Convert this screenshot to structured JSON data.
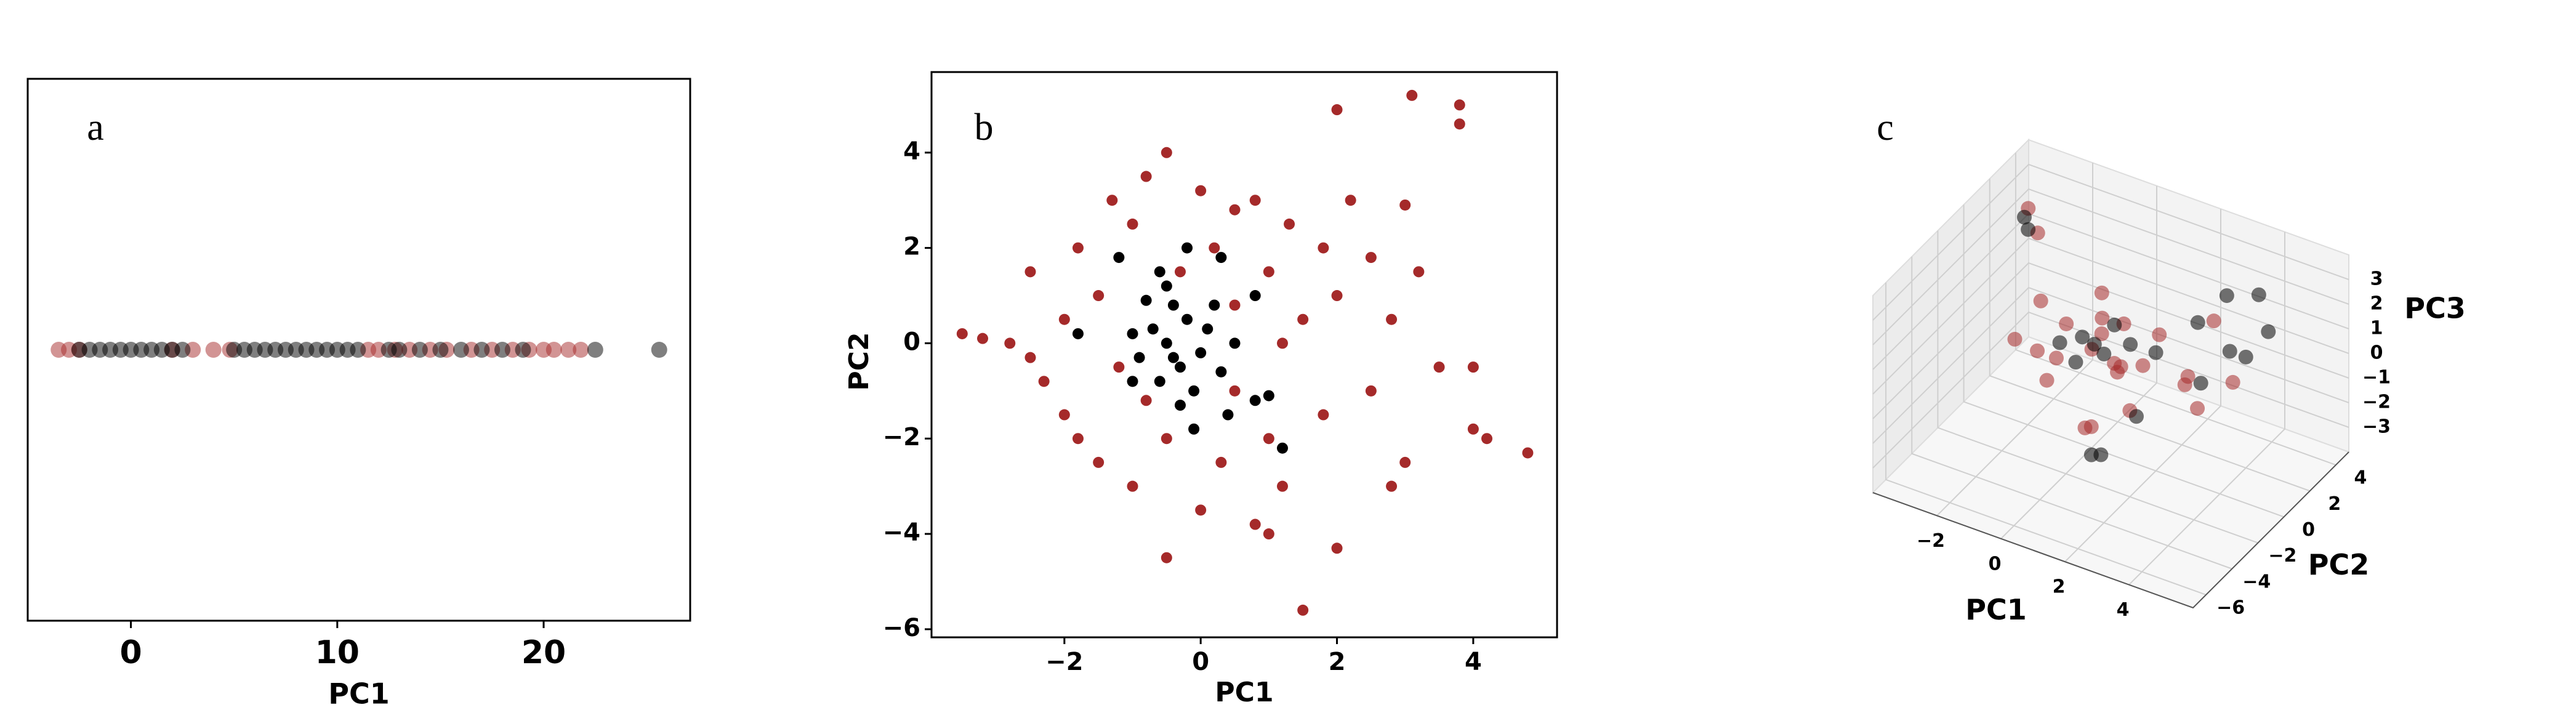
{
  "chart_data": [
    {
      "type": "strip",
      "annotation": "a",
      "xlabel": "PC1",
      "xlim": [
        -5,
        27.1
      ],
      "xticks": [
        0,
        10,
        20
      ],
      "series": [
        {
          "color": "#a52a2a",
          "values": [
            -3.5,
            -3,
            -2.5,
            2,
            3,
            4,
            4.8,
            11.5,
            12,
            12.8,
            13.5,
            14.5,
            15.3,
            16.5,
            17.5,
            18.5,
            19.3,
            20,
            20.5,
            21.2,
            21.8
          ]
        },
        {
          "color": "#000000",
          "values": [
            -2.5,
            -2,
            -1.5,
            -1,
            -0.5,
            0,
            0.5,
            1,
            1.5,
            2,
            2.5,
            5,
            5.5,
            6,
            6.5,
            7,
            7.5,
            8,
            8.5,
            9,
            9.5,
            10,
            10.5,
            11,
            12.5,
            13,
            14,
            15,
            16,
            17,
            18,
            19,
            22.5,
            25.6
          ]
        }
      ]
    },
    {
      "type": "scatter",
      "annotation": "b",
      "xlabel": "PC1",
      "ylabel": "PC2",
      "xlim": [
        -3.95,
        5.23
      ],
      "ylim": [
        -6.17,
        5.69
      ],
      "xticks": [
        {
          "value": -2,
          "label": "−2"
        },
        0,
        2,
        4
      ],
      "yticks": [
        {
          "value": -6,
          "label": "−6"
        },
        {
          "value": -4,
          "label": "−4"
        },
        {
          "value": -2,
          "label": "−2"
        },
        0,
        2,
        4
      ],
      "series": [
        {
          "color": "#a52a2a",
          "x": [
            -3.5,
            -3.2,
            -2.8,
            -2.5,
            -2.3,
            -2,
            -2,
            -1.8,
            -1.5,
            -1.5,
            -1.3,
            -1.2,
            -1,
            -1,
            -0.8,
            -0.5,
            -0.5,
            -0.3,
            0,
            0,
            0.2,
            0.3,
            0.5,
            0.5,
            0.8,
            0.8,
            1,
            1,
            1.2,
            1.3,
            1.5,
            1.5,
            1.8,
            2,
            2,
            2.2,
            2.5,
            2.5,
            2.8,
            3,
            3.1,
            3.2,
            3.5,
            3.8,
            3.8,
            4,
            4,
            4.2,
            4.8,
            -0.5,
            1,
            -1.8,
            2.8,
            1.8,
            -2.5,
            0.5,
            -0.8,
            1.2,
            3,
            2
          ],
          "y": [
            0.2,
            0.1,
            0,
            1.5,
            -0.8,
            0.5,
            -1.5,
            2,
            -2.5,
            1,
            3,
            -0.5,
            2.5,
            -3,
            3.5,
            4,
            -2,
            1.5,
            -3.5,
            3.2,
            2,
            -2.5,
            2.8,
            -1,
            3,
            -3.8,
            1.5,
            -2,
            -3,
            2.5,
            -5.6,
            0.5,
            -1.5,
            4.9,
            1,
            3,
            -1,
            1.8,
            0.5,
            -2.5,
            5.2,
            1.5,
            -0.5,
            5,
            4.6,
            -0.5,
            -1.8,
            -2,
            -2.3,
            -4.5,
            -4,
            -2,
            -3,
            2,
            -0.3,
            0.8,
            -1.2,
            0,
            2.9,
            -4.3
          ]
        },
        {
          "color": "#000000",
          "x": [
            -0.5,
            -0.3,
            -0.7,
            -0.2,
            0,
            -0.6,
            -0.4,
            0.1,
            -0.9,
            -0.1,
            -0.5,
            0.3,
            -0.8,
            -1,
            0.2,
            -0.3,
            0.5,
            -0.6,
            -0.2,
            0.3,
            -1.2,
            -1,
            0.8,
            1,
            1.2,
            0.8,
            -0.1,
            0.4,
            -1.8,
            -0.4
          ],
          "y": [
            0,
            -0.5,
            0.3,
            0.5,
            -0.2,
            -0.8,
            0.8,
            0.3,
            -0.3,
            -1,
            1.2,
            -0.6,
            0.9,
            0.2,
            0.8,
            -1.3,
            0,
            1.5,
            2,
            1.8,
            1.8,
            -0.8,
            -1.2,
            -1.1,
            -2.2,
            1,
            -1.8,
            -1.5,
            0.2,
            -0.3
          ]
        }
      ]
    },
    {
      "type": "scatter3d",
      "annotation": "c",
      "xlabel": "PC1",
      "ylabel": "PC2",
      "zlabel": "PC3",
      "xlim": [
        -4,
        6
      ],
      "ylim": [
        -7,
        5
      ],
      "zlim": [
        -4,
        4
      ],
      "xticks": [
        {
          "value": -2,
          "label": "−2"
        },
        0,
        2,
        4
      ],
      "yticks": [
        {
          "value": -6,
          "label": "−6"
        },
        {
          "value": -4,
          "label": "−4"
        },
        {
          "value": -2,
          "label": "−2"
        },
        0,
        2,
        4
      ],
      "zticks": [
        {
          "value": -3,
          "label": "−3"
        },
        {
          "value": -2,
          "label": "−2"
        },
        {
          "value": -1,
          "label": "−1"
        },
        0,
        1,
        2,
        3
      ],
      "series": [
        {
          "color": "#a52a2a",
          "x": [
            0,
            -1,
            1,
            -2,
            2,
            0.5,
            -0.5,
            1.5,
            -1.5,
            3,
            2.5,
            -0.5,
            0.8,
            1.2,
            -2.5,
            -3,
            3,
            0.2,
            -1,
            2,
            4,
            0.5,
            -0.3,
            1,
            -2,
            3.5
          ],
          "y": [
            0,
            0.5,
            -0.5,
            1,
            -1,
            1,
            -1.5,
            1.5,
            -0.5,
            0,
            1,
            2,
            -2.5,
            -3,
            2,
            2.5,
            2,
            0.3,
            -1,
            -2,
            1,
            0.5,
            1.5,
            0,
            -1,
            -0.5
          ],
          "z": [
            0,
            0.3,
            -0.2,
            0.5,
            0.8,
            -1,
            0.2,
            0.5,
            -0.5,
            0.3,
            -0.8,
            1,
            -1.5,
            -1,
            2.5,
            3,
            1.5,
            1.2,
            -1.2,
            -0.5,
            0,
            -0.6,
            -0.3,
            1.5,
            0,
            -0.5
          ]
        },
        {
          "color": "#000000",
          "x": [
            0,
            -0.5,
            0.5,
            -1,
            1,
            0.3,
            -0.3,
            2,
            2.5,
            3,
            4,
            4.5,
            3.5,
            2,
            1.5,
            1,
            -3,
            -2.8,
            3,
            4
          ],
          "y": [
            0.2,
            0.5,
            -0.3,
            0,
            0.5,
            1,
            -0.5,
            0,
            2,
            3,
            3,
            2.5,
            2,
            -1.5,
            -3,
            -2.5,
            2.2,
            2,
            1,
            2
          ],
          "z": [
            0.1,
            0,
            0.2,
            -0.2,
            0.4,
            0.6,
            -0.4,
            0.8,
            1.2,
            2,
            2.5,
            1.5,
            0.5,
            -1,
            -2,
            -2.5,
            2.8,
            2.5,
            -0.5,
            0.5
          ]
        }
      ]
    }
  ]
}
